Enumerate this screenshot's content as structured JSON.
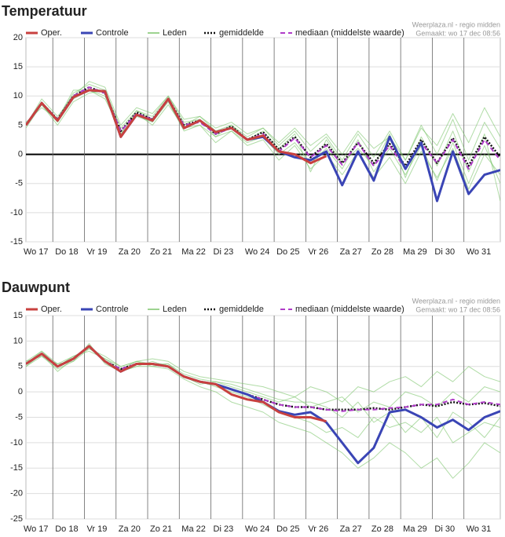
{
  "chart_data": [
    {
      "type": "line",
      "title": "Temperatuur",
      "source": "Weerplaza.nl - regio midden",
      "made": "Gemaakt: wo 17 dec 08:56",
      "x": [
        0.15,
        0.65,
        1.15,
        1.65,
        2.15,
        2.65,
        3.15,
        3.65,
        4.15,
        4.65,
        5.15,
        5.65,
        6.15,
        6.65,
        7.15,
        7.65,
        8.15,
        8.65,
        9.15,
        9.65,
        10.15,
        10.65,
        11.15,
        11.65,
        12.15,
        12.65,
        13.15,
        13.65,
        14.15,
        14.65,
        15.15
      ],
      "xlim": [
        0.15,
        15.15
      ],
      "xticks": [
        {
          "value": 0,
          "label": "Wo 17"
        },
        {
          "value": 1,
          "label": "Do 18"
        },
        {
          "value": 2,
          "label": "Vr 19"
        },
        {
          "value": 3,
          "label": "Za 20"
        },
        {
          "value": 4,
          "label": "Zo 21"
        },
        {
          "value": 5,
          "label": "Ma 22"
        },
        {
          "value": 6,
          "label": "Di 23"
        },
        {
          "value": 7,
          "label": "Wo 24"
        },
        {
          "value": 8,
          "label": "Do 25"
        },
        {
          "value": 9,
          "label": "Vr 26"
        },
        {
          "value": 10,
          "label": "Za 27"
        },
        {
          "value": 11,
          "label": "Zo 28"
        },
        {
          "value": 12,
          "label": "Ma 29"
        },
        {
          "value": 13,
          "label": "Di 30"
        },
        {
          "value": 14,
          "label": "Wo 31"
        }
      ],
      "ylim": [
        -15,
        20
      ],
      "yticks": [
        -15,
        -10,
        -5,
        0,
        5,
        10,
        15,
        20
      ],
      "grid": true,
      "zero_line": true,
      "series": [
        {
          "name": "Oper.",
          "color": "#c8413f",
          "style": "solid",
          "values": [
            5,
            8.8,
            5.8,
            9.8,
            11,
            10.8,
            3,
            6.8,
            5.8,
            9.5,
            4.5,
            5.8,
            3.8,
            4.5,
            2.5,
            3.2,
            0.5,
            0,
            -1.5,
            -0.3,
            null,
            null,
            null,
            null,
            null,
            null,
            null,
            null,
            null,
            null,
            null
          ]
        },
        {
          "name": "Controle",
          "color": "#3a45b5",
          "style": "solid",
          "values": [
            5,
            8.8,
            5.8,
            9.8,
            11,
            10.8,
            3,
            6.8,
            5.8,
            9.5,
            4.5,
            5.8,
            3.8,
            4.5,
            2.5,
            3,
            0.5,
            -0.5,
            -1,
            0.5,
            -5.3,
            0.5,
            -4.5,
            3,
            -2.5,
            2,
            -8,
            0.5,
            -6.8,
            -3.5,
            -2.7
          ]
        },
        {
          "name": "Leden",
          "color": "#7cc46a",
          "style": "thin",
          "members": [
            [
              5,
              9,
              6,
              10.5,
              12,
              11,
              4.5,
              7.5,
              6.5,
              10,
              5.5,
              6,
              3,
              5,
              3,
              4.5,
              1.5,
              4,
              0.5,
              3,
              -1,
              3.5,
              -0.5,
              4,
              -1,
              5,
              0,
              6,
              -1,
              5.5,
              1
            ],
            [
              4.5,
              8.5,
              5.5,
              9.5,
              11,
              10,
              3.5,
              6.5,
              5.5,
              9,
              4,
              5,
              2,
              4,
              1.5,
              2.5,
              -1,
              1.5,
              -2.5,
              0,
              -3.5,
              0.5,
              -4,
              -0.5,
              -5,
              0.5,
              -4,
              1,
              -6,
              0,
              -3.5
            ],
            [
              5,
              9.5,
              6.5,
              10,
              12.5,
              11.5,
              5,
              8,
              7,
              10,
              6,
              6.5,
              4.5,
              5.5,
              3.5,
              4.5,
              2,
              4.5,
              1.5,
              3.5,
              0,
              4,
              1,
              3,
              -1,
              4.5,
              1.5,
              7,
              2,
              8,
              3
            ],
            [
              5.5,
              8,
              6,
              11,
              11,
              9.5,
              4,
              7,
              5,
              8.5,
              4.5,
              5,
              3,
              4,
              2,
              3,
              0,
              2,
              -1.5,
              1,
              -2.5,
              2.5,
              -3,
              1,
              -3.5,
              1.5,
              -4.5,
              2,
              -5,
              1.5,
              -5
            ],
            [
              5,
              8.5,
              5,
              9,
              10.5,
              11,
              3.5,
              7.5,
              6,
              9.5,
              5,
              6.5,
              4,
              5,
              2.5,
              4,
              1,
              3.5,
              -3,
              2.5,
              -1.5,
              1,
              -2,
              3.5,
              -4,
              3,
              -2,
              4,
              -3,
              3.5,
              -8
            ]
          ]
        },
        {
          "name": "gemiddelde",
          "color": "#111111",
          "style": "dotted",
          "values": [
            5,
            8.8,
            6,
            10,
            11.5,
            10.5,
            4,
            7.2,
            6,
            9.5,
            5,
            5.8,
            3.5,
            4.8,
            2.5,
            3.8,
            0.8,
            3,
            -0.5,
            1.8,
            -1.5,
            2,
            -1.5,
            1.8,
            -2,
            2.5,
            -1.5,
            2.8,
            -2,
            3,
            -0.5
          ]
        },
        {
          "name": "mediaan (middelste waarde)",
          "color": "#b03cc8",
          "style": "dashed",
          "values": [
            5,
            8.8,
            6,
            10,
            11.5,
            10.5,
            4,
            7,
            6,
            9.3,
            5,
            5.5,
            3.5,
            4.5,
            2.5,
            3.5,
            0.5,
            2.8,
            -0.5,
            1.5,
            -1.8,
            2,
            -2,
            1.5,
            -2.5,
            2,
            -1.5,
            2.5,
            -2.5,
            2.5,
            -1
          ]
        }
      ]
    },
    {
      "type": "line",
      "title": "Dauwpunt",
      "source": "Weerplaza.nl - regio midden",
      "made": "Gemaakt: wo 17 dec 08:56",
      "x": [
        0.15,
        0.65,
        1.15,
        1.65,
        2.15,
        2.65,
        3.15,
        3.65,
        4.15,
        4.65,
        5.15,
        5.65,
        6.15,
        6.65,
        7.15,
        7.65,
        8.15,
        8.65,
        9.15,
        9.65,
        10.15,
        10.65,
        11.15,
        11.65,
        12.15,
        12.65,
        13.15,
        13.65,
        14.15,
        14.65,
        15.15
      ],
      "xlim": [
        0.15,
        15.15
      ],
      "xticks": [
        {
          "value": 0,
          "label": "Wo 17"
        },
        {
          "value": 1,
          "label": "Do 18"
        },
        {
          "value": 2,
          "label": "Vr 19"
        },
        {
          "value": 3,
          "label": "Za 20"
        },
        {
          "value": 4,
          "label": "Zo 21"
        },
        {
          "value": 5,
          "label": "Ma 22"
        },
        {
          "value": 6,
          "label": "Di 23"
        },
        {
          "value": 7,
          "label": "Wo 24"
        },
        {
          "value": 8,
          "label": "Do 25"
        },
        {
          "value": 9,
          "label": "Vr 26"
        },
        {
          "value": 10,
          "label": "Za 27"
        },
        {
          "value": 11,
          "label": "Zo 28"
        },
        {
          "value": 12,
          "label": "Ma 29"
        },
        {
          "value": 13,
          "label": "Di 30"
        },
        {
          "value": 14,
          "label": "Wo 31"
        }
      ],
      "ylim": [
        -25,
        15
      ],
      "yticks": [
        -25,
        -20,
        -15,
        -10,
        -5,
        0,
        5,
        10,
        15
      ],
      "grid": true,
      "zero_line": false,
      "series": [
        {
          "name": "Oper.",
          "color": "#c8413f",
          "style": "solid",
          "values": [
            5.5,
            7.5,
            5,
            6.5,
            9,
            6,
            4,
            5.5,
            5.5,
            5,
            3,
            2,
            1.5,
            -0.5,
            -1.5,
            -2,
            -4,
            -5,
            -5,
            -5.8,
            null,
            null,
            null,
            null,
            null,
            null,
            null,
            null,
            null,
            null,
            null
          ]
        },
        {
          "name": "Controle",
          "color": "#3a45b5",
          "style": "solid",
          "values": [
            5.5,
            7.5,
            5,
            6.5,
            9,
            6,
            4,
            5.5,
            5.5,
            5,
            3,
            2,
            1.5,
            0.5,
            -0.5,
            -2,
            -3.8,
            -4.5,
            -4,
            -6,
            -10,
            -14,
            -11,
            -4,
            -3.5,
            -5,
            -7,
            -5.5,
            -7.5,
            -5,
            -3.8
          ]
        },
        {
          "name": "Leden",
          "color": "#7cc46a",
          "style": "thin",
          "members": [
            [
              6,
              8,
              5.5,
              7,
              8.5,
              7,
              5,
              6,
              6.5,
              6,
              4,
              3,
              2.5,
              2,
              1.5,
              1,
              0,
              -1,
              1,
              0,
              -2,
              1,
              0,
              2,
              3,
              1,
              4,
              2,
              5,
              3,
              2
            ],
            [
              5,
              7,
              4.5,
              6,
              9.5,
              5.5,
              4,
              5,
              5,
              4.5,
              2.5,
              1,
              0,
              -2,
              -3,
              -4,
              -6,
              -7,
              -8,
              -10,
              -12,
              -15,
              -13,
              -10,
              -12,
              -15,
              -13,
              -17,
              -14,
              -10,
              -12
            ],
            [
              5.5,
              8,
              5,
              7,
              8,
              6.5,
              5,
              6,
              5.5,
              5.5,
              3.5,
              2.5,
              2,
              1,
              0,
              -1,
              -2,
              -1,
              -3,
              -2,
              -1,
              -4,
              -2,
              -3,
              0,
              -1,
              -3,
              0,
              -2,
              1,
              0
            ],
            [
              5,
              7.5,
              4,
              6.5,
              9,
              6,
              4,
              5,
              6,
              5,
              3,
              2,
              1,
              0,
              -1,
              -2.5,
              -4,
              -5,
              -6,
              -8,
              -7,
              -9,
              -5,
              -7,
              -6,
              -8,
              -5,
              -10,
              -8,
              -6,
              -7
            ],
            [
              6,
              7,
              5.5,
              6,
              8.5,
              6.5,
              4.5,
              6,
              5,
              5.5,
              3,
              1.5,
              2,
              1.5,
              0.5,
              -0.5,
              -1.5,
              -2,
              -2,
              -3,
              -5,
              -2,
              -6,
              -4,
              -8,
              -5,
              -9,
              -4,
              -6,
              -9,
              -5
            ]
          ]
        },
        {
          "name": "gemiddelde",
          "color": "#111111",
          "style": "dotted",
          "values": [
            5.5,
            7.5,
            5,
            6.5,
            9,
            6,
            4.5,
            5.5,
            5.5,
            5,
            3,
            2,
            1.5,
            0.5,
            -0.5,
            -1.5,
            -2.5,
            -3,
            -3,
            -3.5,
            -3.5,
            -3.5,
            -3.2,
            -3.5,
            -3,
            -2.5,
            -2.8,
            -2,
            -2.5,
            -2.2,
            -2.8
          ]
        },
        {
          "name": "mediaan (middelste waarde)",
          "color": "#b03cc8",
          "style": "dashed",
          "values": [
            5.5,
            7.5,
            5,
            6.5,
            9,
            6,
            4.5,
            5.5,
            5.5,
            5,
            3,
            2,
            1.5,
            0.5,
            -0.5,
            -1.5,
            -2.5,
            -3,
            -3,
            -3.5,
            -3.8,
            -3.5,
            -3.5,
            -3.2,
            -3,
            -2.5,
            -2.5,
            -1.5,
            -2.5,
            -2,
            -2.5
          ]
        }
      ]
    }
  ]
}
